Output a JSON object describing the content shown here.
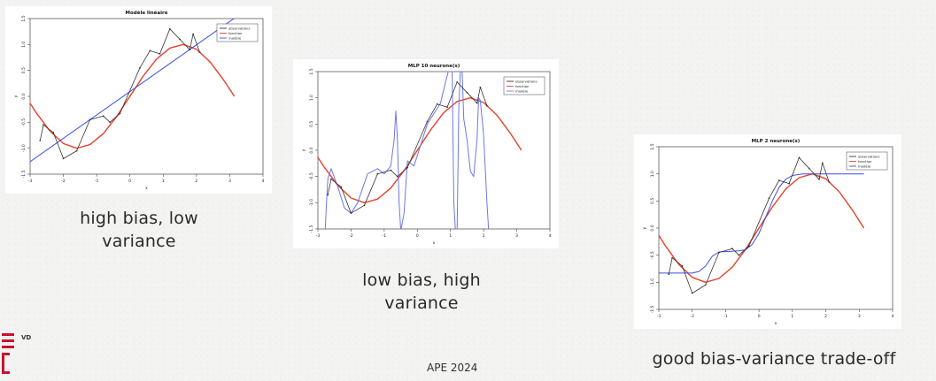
{
  "chart_data": [
    {
      "type": "line",
      "title": "Modèle linéaire",
      "xlabel": "x",
      "ylabel": "y",
      "xlim": [
        -3,
        4
      ],
      "ylim": [
        -1.5,
        1.5
      ],
      "x_ticks": [
        "-3",
        "-2",
        "-1",
        "0",
        "1",
        "2",
        "3",
        "4"
      ],
      "y_ticks": [
        "-1.5",
        "-1.0",
        "-0.5",
        "0.0",
        "0.5",
        "1.0",
        "1.5"
      ],
      "legend": [
        "observations",
        "fonction",
        "modèle"
      ],
      "legend_position": "top-right",
      "series": [
        {
          "name": "observations",
          "color": "#333333",
          "x": [
            -2.7,
            -2.6,
            -2.3,
            -2.0,
            -1.6,
            -1.2,
            -0.8,
            -0.6,
            -0.3,
            0.3,
            0.6,
            0.9,
            1.2,
            1.5,
            1.8,
            1.9,
            2.1
          ],
          "y": [
            -0.85,
            -0.55,
            -0.7,
            -1.2,
            -1.05,
            -0.45,
            -0.38,
            -0.5,
            -0.33,
            0.55,
            0.88,
            0.82,
            1.3,
            1.1,
            0.9,
            1.2,
            0.85
          ]
        },
        {
          "name": "fonction",
          "color": "#e8412b",
          "x": [
            -3.2,
            -2.8,
            -2.4,
            -2.0,
            -1.6,
            -1.2,
            -0.8,
            -0.4,
            0.0,
            0.4,
            0.8,
            1.2,
            1.6,
            2.0,
            2.4,
            2.8,
            3.14
          ],
          "y": [
            0.06,
            -0.33,
            -0.67,
            -0.91,
            -1.0,
            -0.93,
            -0.72,
            -0.39,
            0.0,
            0.39,
            0.72,
            0.93,
            1.0,
            0.91,
            0.67,
            0.33,
            0.0
          ]
        },
        {
          "name": "modèle",
          "color": "#3b4fe0",
          "x": [
            -3.2,
            3.2
          ],
          "y": [
            -1.35,
            1.6
          ]
        }
      ]
    },
    {
      "type": "line",
      "title": "MLP 10 neurone(s)",
      "xlabel": "x",
      "ylabel": "y",
      "xlim": [
        -3,
        4
      ],
      "ylim": [
        -1.5,
        1.5
      ],
      "x_ticks": [
        "-3",
        "-2",
        "-1",
        "0",
        "1",
        "2",
        "3",
        "4"
      ],
      "y_ticks": [
        "-1.5",
        "-1.0",
        "-0.5",
        "0.0",
        "0.5",
        "1.0",
        "1.5"
      ],
      "legend": [
        "observations",
        "fonction",
        "modèle"
      ],
      "legend_position": "top-right",
      "series": [
        {
          "name": "observations",
          "color": "#333333",
          "x": [
            -2.7,
            -2.6,
            -2.3,
            -2.0,
            -1.6,
            -1.2,
            -0.8,
            -0.6,
            -0.3,
            0.3,
            0.6,
            0.9,
            1.2,
            1.5,
            1.8,
            1.9,
            2.1
          ],
          "y": [
            -0.85,
            -0.55,
            -0.7,
            -1.2,
            -1.05,
            -0.45,
            -0.38,
            -0.5,
            -0.33,
            0.55,
            0.88,
            0.82,
            1.3,
            1.1,
            0.9,
            1.2,
            0.85
          ]
        },
        {
          "name": "fonction",
          "color": "#e8412b",
          "x": [
            -3.2,
            -2.8,
            -2.4,
            -2.0,
            -1.6,
            -1.2,
            -0.8,
            -0.4,
            0.0,
            0.4,
            0.8,
            1.2,
            1.6,
            2.0,
            2.4,
            2.8,
            3.14
          ],
          "y": [
            0.06,
            -0.33,
            -0.67,
            -0.91,
            -1.0,
            -0.93,
            -0.72,
            -0.39,
            0.0,
            0.39,
            0.72,
            0.93,
            1.0,
            0.91,
            0.67,
            0.33,
            0.0
          ]
        },
        {
          "name": "modèle",
          "color": "#6a78e8",
          "x": [
            -2.78,
            -2.74,
            -2.7,
            -2.6,
            -2.4,
            -2.2,
            -2.0,
            -1.8,
            -1.5,
            -1.2,
            -1.0,
            -0.8,
            -0.7,
            -0.65,
            -0.6,
            -0.55,
            -0.5,
            -0.4,
            -0.3,
            -0.1,
            0.1,
            0.3,
            0.5,
            0.7,
            0.85,
            0.95,
            1.05,
            1.1,
            1.15,
            1.2,
            1.25,
            1.3,
            1.35,
            1.4,
            1.5,
            1.6,
            1.7,
            1.8,
            1.85,
            1.9,
            2.0,
            2.1,
            2.15,
            2.2
          ],
          "y": [
            -1.6,
            -1.0,
            -0.55,
            -0.35,
            -0.7,
            -1.1,
            -1.2,
            -1.0,
            -0.45,
            -0.35,
            -0.45,
            -0.3,
            0.2,
            0.75,
            0.2,
            -1.0,
            -1.6,
            -1.2,
            -0.2,
            -0.3,
            0.1,
            0.5,
            0.7,
            0.9,
            1.3,
            1.6,
            1.6,
            -1.0,
            -1.6,
            -1.6,
            0.8,
            1.7,
            1.7,
            0.6,
            0.2,
            -0.4,
            -0.5,
            0.2,
            1.0,
            0.95,
            0.3,
            -1.0,
            -1.6,
            -1.6
          ]
        }
      ]
    },
    {
      "type": "line",
      "title": "MLP 2 neurone(s)",
      "xlabel": "x",
      "ylabel": "y",
      "xlim": [
        -3,
        4
      ],
      "ylim": [
        -1.5,
        1.5
      ],
      "x_ticks": [
        "-3",
        "-2",
        "-1",
        "0",
        "1",
        "2",
        "3",
        "4"
      ],
      "y_ticks": [
        "-1.5",
        "-1.0",
        "-0.5",
        "0.0",
        "0.5",
        "1.0",
        "1.5"
      ],
      "legend": [
        "observations",
        "fonction",
        "modèle"
      ],
      "legend_position": "top-right",
      "series": [
        {
          "name": "observations",
          "color": "#333333",
          "x": [
            -2.7,
            -2.6,
            -2.3,
            -2.0,
            -1.6,
            -1.2,
            -0.8,
            -0.6,
            -0.3,
            0.3,
            0.6,
            0.9,
            1.2,
            1.5,
            1.8,
            1.9,
            2.1
          ],
          "y": [
            -0.85,
            -0.55,
            -0.7,
            -1.2,
            -1.05,
            -0.45,
            -0.38,
            -0.5,
            -0.33,
            0.55,
            0.88,
            0.82,
            1.3,
            1.1,
            0.9,
            1.2,
            0.85
          ]
        },
        {
          "name": "fonction",
          "color": "#e8412b",
          "x": [
            -3.2,
            -2.8,
            -2.4,
            -2.0,
            -1.6,
            -1.2,
            -0.8,
            -0.4,
            0.0,
            0.4,
            0.8,
            1.2,
            1.6,
            2.0,
            2.4,
            2.8,
            3.14
          ],
          "y": [
            0.06,
            -0.33,
            -0.67,
            -0.91,
            -1.0,
            -0.93,
            -0.72,
            -0.39,
            0.0,
            0.39,
            0.72,
            0.93,
            1.0,
            0.91,
            0.67,
            0.33,
            0.0
          ]
        },
        {
          "name": "modèle",
          "color": "#3b4fe0",
          "x": [
            -3.0,
            -2.0,
            -1.8,
            -1.6,
            -1.4,
            -1.2,
            -0.9,
            -0.6,
            -0.4,
            -0.2,
            0.0,
            0.2,
            0.4,
            0.6,
            0.8,
            1.0,
            1.3,
            2.0,
            3.14
          ],
          "y": [
            -0.83,
            -0.83,
            -0.8,
            -0.7,
            -0.52,
            -0.44,
            -0.43,
            -0.42,
            -0.4,
            -0.3,
            -0.1,
            0.2,
            0.5,
            0.75,
            0.9,
            0.97,
            1.0,
            1.0,
            1.0
          ]
        }
      ]
    }
  ],
  "captions": {
    "left": [
      "high bias, low",
      "variance"
    ],
    "middle": [
      "low bias, high",
      "variance"
    ],
    "right": [
      "good bias-variance trade-off"
    ]
  },
  "footer": "APE 2024",
  "logo_text": "VD"
}
